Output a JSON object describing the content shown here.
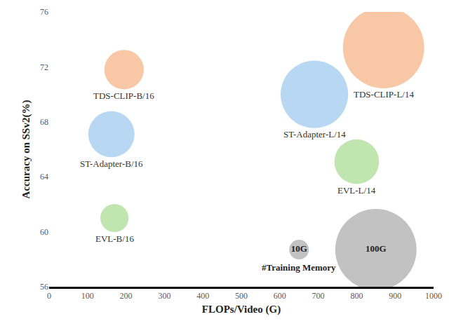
{
  "chart_data": {
    "type": "scatter",
    "marker": "bubble",
    "x_label": "FLOPs/Video (G)",
    "y_label": "Accuracy on SSv2(%)",
    "xlim": [
      0,
      1000
    ],
    "xticks": [
      0,
      100,
      200,
      300,
      400,
      500,
      600,
      700,
      800,
      900,
      1000
    ],
    "ylim": [
      56,
      76
    ],
    "yticks": [
      56,
      60,
      64,
      68,
      72,
      76
    ],
    "grid": false,
    "points": [
      {
        "label": "TDS-CLIP-B/16",
        "x": 195,
        "y": 71.8,
        "memory": 31,
        "color": "#f8c4a1"
      },
      {
        "label": "ST-Adapter-B/16",
        "x": 162,
        "y": 67.1,
        "memory": 40,
        "color": "#b4d5f1"
      },
      {
        "label": "EVL-B/16",
        "x": 170,
        "y": 61.0,
        "memory": 18,
        "color": "#bde4aa"
      },
      {
        "label": "TDS-CLIP-L/14",
        "x": 870,
        "y": 73.4,
        "memory": 100,
        "color": "#f8c4a1"
      },
      {
        "label": "ST-Adapter-L/14",
        "x": 690,
        "y": 70.0,
        "memory": 74,
        "color": "#b4d5f1"
      },
      {
        "label": "EVL-L/14",
        "x": 800,
        "y": 65.1,
        "memory": 38,
        "color": "#bde4aa"
      }
    ],
    "size_legend": {
      "title": "#Training Memory",
      "color": "#bfbfbf",
      "items": [
        {
          "label": "10G",
          "value": 10,
          "x": 650,
          "y": 58.7
        },
        {
          "label": "100G",
          "value": 100,
          "x": 850,
          "y": 58.7
        }
      ]
    }
  }
}
